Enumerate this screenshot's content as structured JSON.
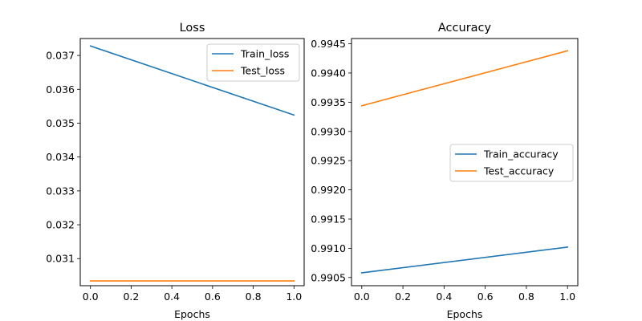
{
  "chart_data": [
    {
      "type": "line",
      "title": "Loss",
      "xlabel": "Epochs",
      "ylabel": "",
      "x": [
        0,
        1
      ],
      "xlim": [
        -0.05,
        1.05
      ],
      "ylim": [
        0.0302,
        0.0375
      ],
      "xticks": [
        "0.0",
        "0.2",
        "0.4",
        "0.6",
        "0.8",
        "1.0"
      ],
      "yticks": [
        "0.031",
        "0.032",
        "0.033",
        "0.034",
        "0.035",
        "0.036",
        "0.037"
      ],
      "legend": "top-right",
      "series": [
        {
          "name": "Train_loss",
          "color": "#1f77b4",
          "values": [
            0.03728,
            0.03524
          ]
        },
        {
          "name": "Test_loss",
          "color": "#ff7f0e",
          "values": [
            0.03034,
            0.03034
          ]
        }
      ]
    },
    {
      "type": "line",
      "title": "Accuracy",
      "xlabel": "Epochs",
      "ylabel": "",
      "x": [
        0,
        1
      ],
      "xlim": [
        -0.05,
        1.05
      ],
      "ylim": [
        0.99036,
        0.99459
      ],
      "xticks": [
        "0.0",
        "0.2",
        "0.4",
        "0.6",
        "0.8",
        "1.0"
      ],
      "yticks": [
        "0.9905",
        "0.9910",
        "0.9915",
        "0.9920",
        "0.9925",
        "0.9930",
        "0.9935",
        "0.9940",
        "0.9945"
      ],
      "legend": "center-right",
      "series": [
        {
          "name": "Train_accuracy",
          "color": "#1f77b4",
          "values": [
            0.99058,
            0.99102
          ]
        },
        {
          "name": "Test_accuracy",
          "color": "#ff7f0e",
          "values": [
            0.99344,
            0.99438
          ]
        }
      ]
    }
  ]
}
